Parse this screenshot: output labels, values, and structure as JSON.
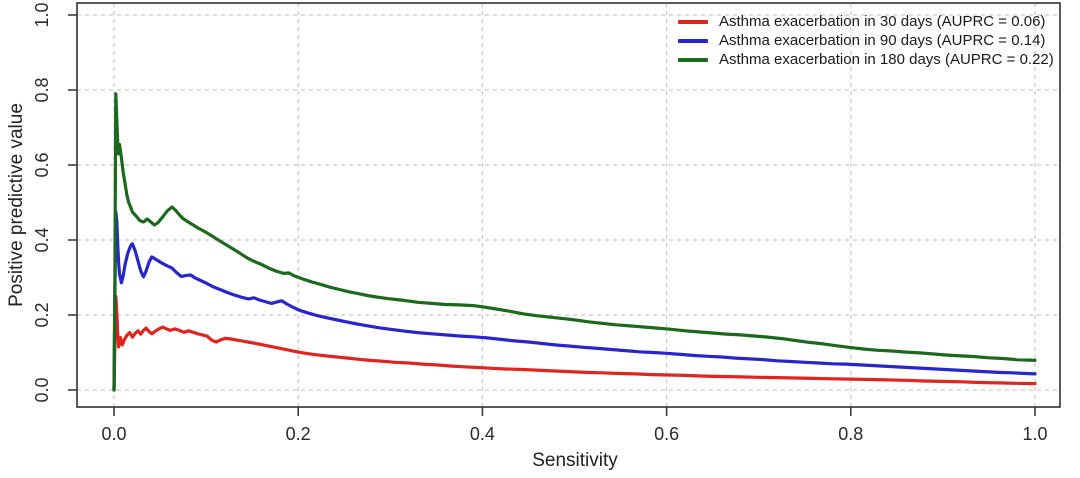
{
  "chart_data": {
    "type": "line",
    "description": "Precision-recall curves for asthma exacerbation prediction",
    "xlabel": "Sensitivity",
    "ylabel": "Positive predictive value",
    "xlim": [
      0.0,
      1.0
    ],
    "ylim": [
      0.0,
      1.0
    ],
    "x_ticks": [
      "0.0",
      "0.2",
      "0.4",
      "0.6",
      "0.8",
      "1.0"
    ],
    "y_ticks": [
      "0.0",
      "0.2",
      "0.4",
      "0.6",
      "0.8",
      "1.0"
    ],
    "grid": "dashed light-gray lines at every 0.2 on both axes",
    "legend_position": "top-right",
    "colors": {
      "grid": "#c9c9c9",
      "axis": "#3d3d3d",
      "text": "#222222"
    },
    "series": [
      {
        "id": "30-days",
        "name": "Asthma exacerbation in 30 days (AUPRC = 0.06)",
        "auprc": 0.06,
        "color": "#e02420",
        "points": [
          [
            0,
            0
          ],
          [
            0.001,
            0.13
          ],
          [
            0.002,
            0.25
          ],
          [
            0.003,
            0.21
          ],
          [
            0.004,
            0.15
          ],
          [
            0.005,
            0.115
          ],
          [
            0.007,
            0.14
          ],
          [
            0.009,
            0.12
          ],
          [
            0.011,
            0.133
          ],
          [
            0.014,
            0.146
          ],
          [
            0.017,
            0.153
          ],
          [
            0.02,
            0.141
          ],
          [
            0.023,
            0.151
          ],
          [
            0.026,
            0.158
          ],
          [
            0.029,
            0.149
          ],
          [
            0.032,
            0.159
          ],
          [
            0.035,
            0.165
          ],
          [
            0.038,
            0.156
          ],
          [
            0.041,
            0.15
          ],
          [
            0.045,
            0.157
          ],
          [
            0.049,
            0.163
          ],
          [
            0.053,
            0.168
          ],
          [
            0.057,
            0.163
          ],
          [
            0.061,
            0.159
          ],
          [
            0.066,
            0.163
          ],
          [
            0.071,
            0.159
          ],
          [
            0.076,
            0.154
          ],
          [
            0.081,
            0.158
          ],
          [
            0.086,
            0.154
          ],
          [
            0.091,
            0.15
          ],
          [
            0.096,
            0.147
          ],
          [
            0.101,
            0.144
          ],
          [
            0.106,
            0.133
          ],
          [
            0.111,
            0.128
          ],
          [
            0.116,
            0.134
          ],
          [
            0.121,
            0.138
          ],
          [
            0.127,
            0.136
          ],
          [
            0.133,
            0.133
          ],
          [
            0.139,
            0.131
          ],
          [
            0.145,
            0.128
          ],
          [
            0.152,
            0.125
          ],
          [
            0.16,
            0.121
          ],
          [
            0.168,
            0.117
          ],
          [
            0.176,
            0.113
          ],
          [
            0.184,
            0.109
          ],
          [
            0.192,
            0.105
          ],
          [
            0.2,
            0.101
          ],
          [
            0.21,
            0.097
          ],
          [
            0.22,
            0.094
          ],
          [
            0.23,
            0.091
          ],
          [
            0.242,
            0.088
          ],
          [
            0.254,
            0.085
          ],
          [
            0.266,
            0.082
          ],
          [
            0.278,
            0.079
          ],
          [
            0.29,
            0.077
          ],
          [
            0.305,
            0.074
          ],
          [
            0.32,
            0.072
          ],
          [
            0.335,
            0.069
          ],
          [
            0.35,
            0.067
          ],
          [
            0.365,
            0.064
          ],
          [
            0.38,
            0.062
          ],
          [
            0.395,
            0.06
          ],
          [
            0.41,
            0.058
          ],
          [
            0.425,
            0.056
          ],
          [
            0.44,
            0.055
          ],
          [
            0.458,
            0.053
          ],
          [
            0.476,
            0.051
          ],
          [
            0.494,
            0.049
          ],
          [
            0.512,
            0.047
          ],
          [
            0.53,
            0.046
          ],
          [
            0.548,
            0.044
          ],
          [
            0.566,
            0.043
          ],
          [
            0.584,
            0.041
          ],
          [
            0.602,
            0.04
          ],
          [
            0.62,
            0.039
          ],
          [
            0.64,
            0.037
          ],
          [
            0.66,
            0.036
          ],
          [
            0.68,
            0.035
          ],
          [
            0.7,
            0.034
          ],
          [
            0.72,
            0.033
          ],
          [
            0.74,
            0.032
          ],
          [
            0.76,
            0.031
          ],
          [
            0.78,
            0.03
          ],
          [
            0.8,
            0.029
          ],
          [
            0.82,
            0.028
          ],
          [
            0.84,
            0.027
          ],
          [
            0.86,
            0.026
          ],
          [
            0.88,
            0.024
          ],
          [
            0.9,
            0.023
          ],
          [
            0.92,
            0.022
          ],
          [
            0.94,
            0.02
          ],
          [
            0.96,
            0.019
          ],
          [
            0.98,
            0.018
          ],
          [
            1,
            0.017
          ]
        ]
      },
      {
        "id": "90-days",
        "name": "Asthma exacerbation in 90 days (AUPRC = 0.14)",
        "auprc": 0.14,
        "color": "#2626cc",
        "points": [
          [
            0,
            0
          ],
          [
            0.001,
            0.25
          ],
          [
            0.002,
            0.475
          ],
          [
            0.003,
            0.45
          ],
          [
            0.004,
            0.39
          ],
          [
            0.005,
            0.34
          ],
          [
            0.006,
            0.31
          ],
          [
            0.008,
            0.286
          ],
          [
            0.01,
            0.305
          ],
          [
            0.012,
            0.335
          ],
          [
            0.015,
            0.365
          ],
          [
            0.018,
            0.384
          ],
          [
            0.02,
            0.39
          ],
          [
            0.023,
            0.371
          ],
          [
            0.026,
            0.345
          ],
          [
            0.029,
            0.318
          ],
          [
            0.032,
            0.302
          ],
          [
            0.035,
            0.318
          ],
          [
            0.038,
            0.341
          ],
          [
            0.041,
            0.355
          ],
          [
            0.045,
            0.349
          ],
          [
            0.049,
            0.343
          ],
          [
            0.053,
            0.337
          ],
          [
            0.058,
            0.331
          ],
          [
            0.063,
            0.325
          ],
          [
            0.068,
            0.313
          ],
          [
            0.073,
            0.303
          ],
          [
            0.078,
            0.305
          ],
          [
            0.083,
            0.307
          ],
          [
            0.088,
            0.299
          ],
          [
            0.094,
            0.292
          ],
          [
            0.1,
            0.285
          ],
          [
            0.107,
            0.276
          ],
          [
            0.115,
            0.268
          ],
          [
            0.123,
            0.26
          ],
          [
            0.131,
            0.253
          ],
          [
            0.139,
            0.247
          ],
          [
            0.146,
            0.243
          ],
          [
            0.152,
            0.246
          ],
          [
            0.158,
            0.24
          ],
          [
            0.165,
            0.235
          ],
          [
            0.171,
            0.231
          ],
          [
            0.177,
            0.235
          ],
          [
            0.182,
            0.238
          ],
          [
            0.188,
            0.229
          ],
          [
            0.194,
            0.221
          ],
          [
            0.2,
            0.214
          ],
          [
            0.21,
            0.206
          ],
          [
            0.22,
            0.199
          ],
          [
            0.23,
            0.193
          ],
          [
            0.24,
            0.188
          ],
          [
            0.252,
            0.182
          ],
          [
            0.264,
            0.176
          ],
          [
            0.276,
            0.171
          ],
          [
            0.288,
            0.166
          ],
          [
            0.3,
            0.162
          ],
          [
            0.315,
            0.157
          ],
          [
            0.33,
            0.153
          ],
          [
            0.345,
            0.15
          ],
          [
            0.36,
            0.147
          ],
          [
            0.375,
            0.144
          ],
          [
            0.39,
            0.142
          ],
          [
            0.405,
            0.139
          ],
          [
            0.42,
            0.135
          ],
          [
            0.435,
            0.131
          ],
          [
            0.45,
            0.128
          ],
          [
            0.465,
            0.124
          ],
          [
            0.48,
            0.12
          ],
          [
            0.495,
            0.117
          ],
          [
            0.51,
            0.114
          ],
          [
            0.525,
            0.111
          ],
          [
            0.54,
            0.108
          ],
          [
            0.555,
            0.105
          ],
          [
            0.57,
            0.102
          ],
          [
            0.585,
            0.1
          ],
          [
            0.6,
            0.098
          ],
          [
            0.615,
            0.095
          ],
          [
            0.63,
            0.092
          ],
          [
            0.645,
            0.09
          ],
          [
            0.66,
            0.088
          ],
          [
            0.675,
            0.085
          ],
          [
            0.69,
            0.083
          ],
          [
            0.705,
            0.081
          ],
          [
            0.72,
            0.078
          ],
          [
            0.735,
            0.076
          ],
          [
            0.75,
            0.074
          ],
          [
            0.765,
            0.072
          ],
          [
            0.78,
            0.07
          ],
          [
            0.795,
            0.069
          ],
          [
            0.81,
            0.067
          ],
          [
            0.825,
            0.065
          ],
          [
            0.84,
            0.063
          ],
          [
            0.855,
            0.061
          ],
          [
            0.87,
            0.059
          ],
          [
            0.885,
            0.057
          ],
          [
            0.9,
            0.055
          ],
          [
            0.915,
            0.053
          ],
          [
            0.93,
            0.051
          ],
          [
            0.945,
            0.049
          ],
          [
            0.96,
            0.047
          ],
          [
            0.975,
            0.046
          ],
          [
            0.99,
            0.044
          ],
          [
            1,
            0.043
          ]
        ]
      },
      {
        "id": "180-days",
        "name": "Asthma exacerbation in 180 days (AUPRC = 0.22)",
        "auprc": 0.22,
        "color": "#1c681c",
        "points": [
          [
            0,
            0
          ],
          [
            0.001,
            0.3
          ],
          [
            0.002,
            0.79
          ],
          [
            0.003,
            0.72
          ],
          [
            0.004,
            0.66
          ],
          [
            0.005,
            0.63
          ],
          [
            0.006,
            0.655
          ],
          [
            0.008,
            0.62
          ],
          [
            0.01,
            0.58
          ],
          [
            0.012,
            0.55
          ],
          [
            0.014,
            0.52
          ],
          [
            0.016,
            0.5
          ],
          [
            0.018,
            0.488
          ],
          [
            0.02,
            0.475
          ],
          [
            0.024,
            0.464
          ],
          [
            0.028,
            0.452
          ],
          [
            0.032,
            0.448
          ],
          [
            0.036,
            0.456
          ],
          [
            0.04,
            0.448
          ],
          [
            0.044,
            0.44
          ],
          [
            0.048,
            0.447
          ],
          [
            0.053,
            0.462
          ],
          [
            0.058,
            0.478
          ],
          [
            0.063,
            0.488
          ],
          [
            0.067,
            0.479
          ],
          [
            0.071,
            0.467
          ],
          [
            0.075,
            0.457
          ],
          [
            0.08,
            0.449
          ],
          [
            0.086,
            0.44
          ],
          [
            0.092,
            0.431
          ],
          [
            0.098,
            0.423
          ],
          [
            0.105,
            0.413
          ],
          [
            0.112,
            0.402
          ],
          [
            0.12,
            0.39
          ],
          [
            0.128,
            0.378
          ],
          [
            0.136,
            0.366
          ],
          [
            0.144,
            0.353
          ],
          [
            0.152,
            0.343
          ],
          [
            0.16,
            0.335
          ],
          [
            0.168,
            0.325
          ],
          [
            0.176,
            0.317
          ],
          [
            0.184,
            0.311
          ],
          [
            0.19,
            0.312
          ],
          [
            0.196,
            0.304
          ],
          [
            0.205,
            0.296
          ],
          [
            0.215,
            0.288
          ],
          [
            0.225,
            0.281
          ],
          [
            0.235,
            0.274
          ],
          [
            0.245,
            0.268
          ],
          [
            0.255,
            0.262
          ],
          [
            0.265,
            0.257
          ],
          [
            0.275,
            0.252
          ],
          [
            0.285,
            0.248
          ],
          [
            0.3,
            0.243
          ],
          [
            0.315,
            0.239
          ],
          [
            0.33,
            0.234
          ],
          [
            0.345,
            0.231
          ],
          [
            0.36,
            0.228
          ],
          [
            0.375,
            0.227
          ],
          [
            0.39,
            0.225
          ],
          [
            0.4,
            0.222
          ],
          [
            0.415,
            0.216
          ],
          [
            0.43,
            0.21
          ],
          [
            0.445,
            0.203
          ],
          [
            0.46,
            0.198
          ],
          [
            0.475,
            0.194
          ],
          [
            0.49,
            0.19
          ],
          [
            0.5,
            0.187
          ],
          [
            0.515,
            0.182
          ],
          [
            0.53,
            0.178
          ],
          [
            0.545,
            0.174
          ],
          [
            0.56,
            0.171
          ],
          [
            0.575,
            0.168
          ],
          [
            0.59,
            0.165
          ],
          [
            0.605,
            0.162
          ],
          [
            0.62,
            0.158
          ],
          [
            0.635,
            0.155
          ],
          [
            0.65,
            0.152
          ],
          [
            0.665,
            0.149
          ],
          [
            0.68,
            0.147
          ],
          [
            0.695,
            0.144
          ],
          [
            0.71,
            0.141
          ],
          [
            0.725,
            0.137
          ],
          [
            0.74,
            0.132
          ],
          [
            0.755,
            0.127
          ],
          [
            0.77,
            0.123
          ],
          [
            0.785,
            0.118
          ],
          [
            0.8,
            0.113
          ],
          [
            0.815,
            0.109
          ],
          [
            0.83,
            0.106
          ],
          [
            0.845,
            0.104
          ],
          [
            0.86,
            0.101
          ],
          [
            0.875,
            0.099
          ],
          [
            0.89,
            0.096
          ],
          [
            0.905,
            0.093
          ],
          [
            0.92,
            0.091
          ],
          [
            0.935,
            0.089
          ],
          [
            0.95,
            0.086
          ],
          [
            0.965,
            0.084
          ],
          [
            0.98,
            0.081
          ],
          [
            1,
            0.079
          ]
        ]
      }
    ]
  }
}
